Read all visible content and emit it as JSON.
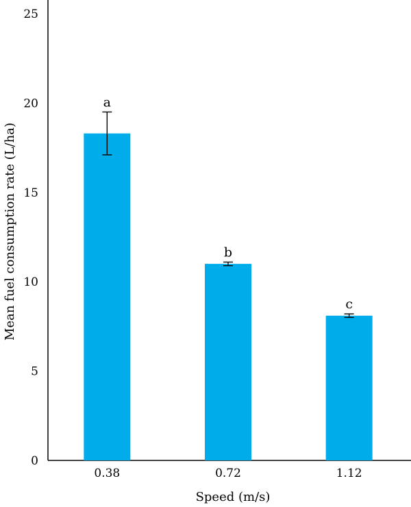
{
  "chart_data": {
    "type": "bar",
    "categories": [
      "0.38",
      "0.72",
      "1.12"
    ],
    "values": [
      18.3,
      11.0,
      8.1
    ],
    "error": [
      1.2,
      0.1,
      0.1
    ],
    "significance_letters": [
      "a",
      "b",
      "c"
    ],
    "xlabel": "Speed (m/s)",
    "ylabel": "Mean fuel consumption rate (L/ha)",
    "ylim": [
      0,
      25
    ],
    "yticks": [
      "0",
      "5",
      "10",
      "15",
      "20",
      "25"
    ],
    "grid": false,
    "bar_color": "#00adea"
  }
}
